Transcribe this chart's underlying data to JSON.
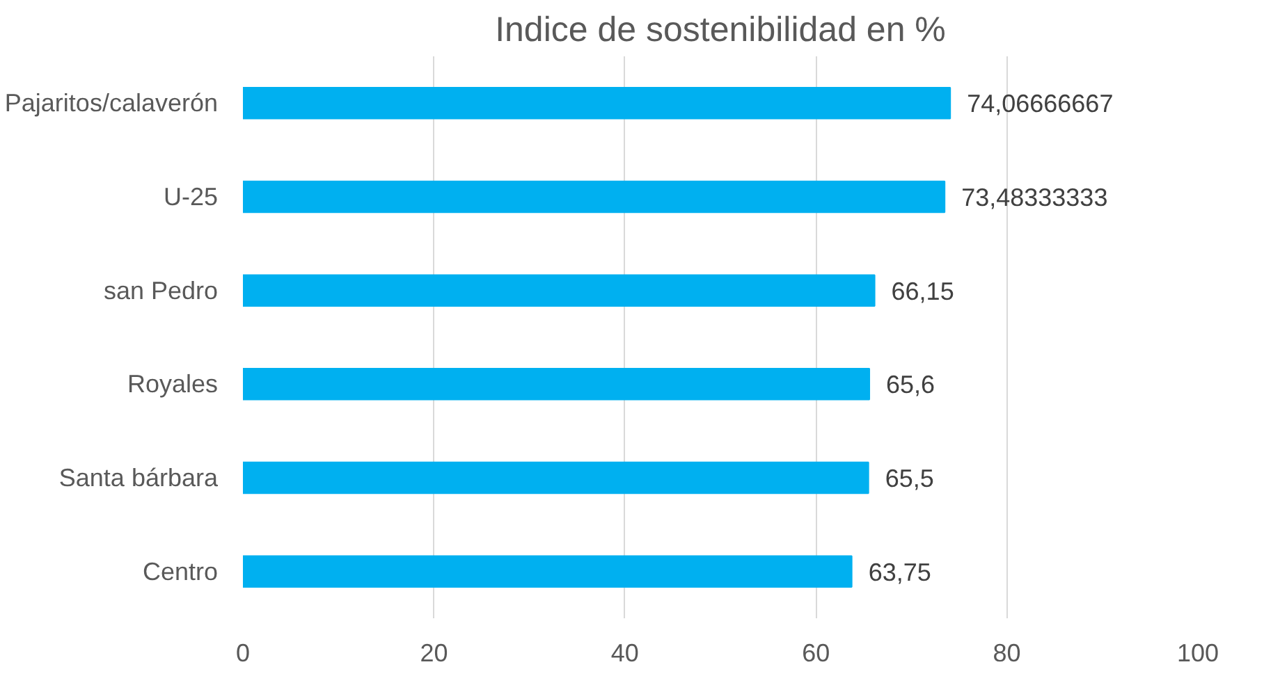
{
  "chart_data": {
    "type": "bar",
    "orientation": "horizontal",
    "title": "Indice de sostenibilidad en %",
    "categories": [
      "Pajaritos/calaverón",
      "U-25",
      "san Pedro",
      "Royales",
      "Santa bárbara",
      "Centro"
    ],
    "values": [
      74.06666667,
      73.48333333,
      66.15,
      65.6,
      65.5,
      63.75
    ],
    "value_labels": [
      "74,06666667",
      "73,48333333",
      "66,15",
      "65,6",
      "65,5",
      "63,75"
    ],
    "color": "#00b0f0",
    "xlim": [
      0,
      100
    ],
    "xticks": [
      0,
      20,
      40,
      60,
      80,
      100
    ],
    "grid": "x"
  }
}
